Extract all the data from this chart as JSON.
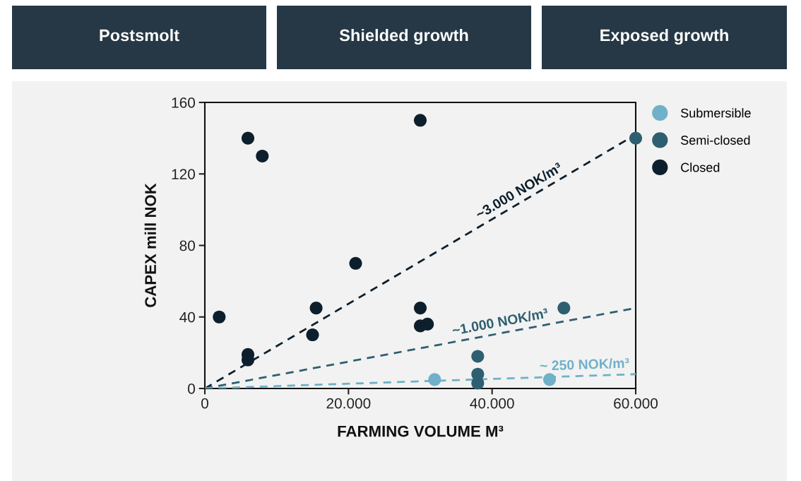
{
  "chart_data": {
    "type": "scatter",
    "xlabel": "FARMING VOLUME M³",
    "ylabel": "CAPEX mill NOK",
    "xlim": [
      0,
      60000
    ],
    "ylim": [
      0,
      160
    ],
    "xticks": [
      0,
      {
        "value": 20000,
        "label": "20.000"
      },
      {
        "value": 40000,
        "label": "40.000"
      },
      {
        "value": 60000,
        "label": "60.000"
      }
    ],
    "yticks": [
      0,
      40,
      80,
      120,
      160
    ],
    "grid": false,
    "legend": "right",
    "marker": "circle",
    "series": [
      {
        "name": "Submersible",
        "color": "#6fb1c8",
        "x": [
          32000,
          48000
        ],
        "values": [
          5,
          5
        ]
      },
      {
        "name": "Semi-closed",
        "color": "#2e5f70",
        "x": [
          60000,
          50000,
          38000,
          38000,
          38000
        ],
        "values": [
          140,
          45,
          18,
          8,
          3
        ]
      },
      {
        "name": "Closed",
        "color": "#0d1f2d",
        "x": [
          2000,
          6000,
          8000,
          6000,
          6000,
          15000,
          15500,
          21000,
          30000,
          30000,
          30000,
          31000
        ],
        "values": [
          40,
          140,
          130,
          19,
          16,
          30,
          45,
          70,
          150,
          45,
          35,
          36
        ]
      },
      {
        "type": "line",
        "marker": "none",
        "color": "#0d1f2d",
        "line_style": "dashed",
        "x": [
          0,
          60000
        ],
        "values": [
          0,
          142
        ]
      },
      {
        "type": "line",
        "marker": "none",
        "color": "#2e5f70",
        "line_style": "dashed",
        "x": [
          0,
          60000
        ],
        "values": [
          0,
          45
        ]
      },
      {
        "type": "line",
        "marker": "none",
        "color": "#6fb1c8",
        "line_style": "dashed",
        "x": [
          0,
          60000
        ],
        "values": [
          0,
          8
        ]
      }
    ],
    "annotations": [
      "Postsmolt",
      "Shielded growth",
      "Exposed growth",
      {
        "text": "~3.000 NOK/m³",
        "x": 44250,
        "y": 104.72
      },
      {
        "text": "~1.000 NOK/m³",
        "x": 41300,
        "y": 30.975
      },
      {
        "text": "~ 250 NOK/m³",
        "x": 52900,
        "y": 7.0533
      }
    ]
  }
}
